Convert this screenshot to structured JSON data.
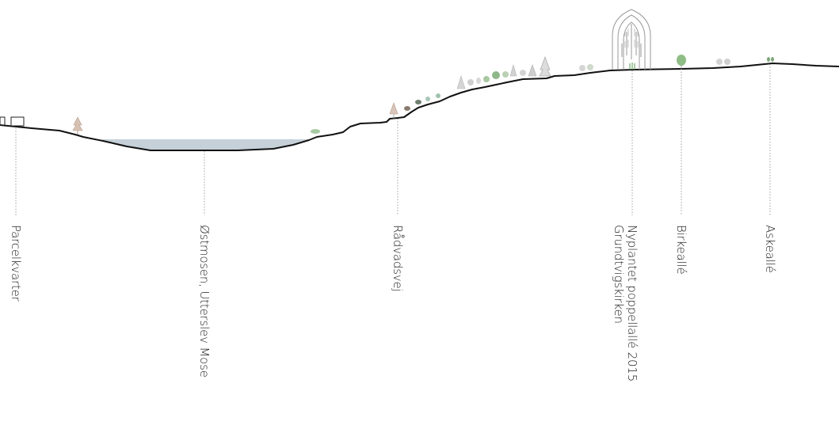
{
  "labels": {
    "parcelkvarter": "Parcelkvarter",
    "ostmosen": "Østmosen, Utterslev Mose",
    "radvadsvej": "Rådvadsvej",
    "poppelalle_line1": "Nyplantet poppellallé 2015",
    "poppelalle_line2": "Grundtvigskirken",
    "birkealle": "Birkeallé",
    "askealle": "Askeallé"
  },
  "colors": {
    "terrain_line": "#111111",
    "water": "#c5d0d8",
    "leader": "#a0a0a0",
    "tree_grey": "#b8b8b8",
    "tree_green": "#8fb88a",
    "tree_brown": "#b89a86",
    "church_outline": "#9a9a9a"
  }
}
